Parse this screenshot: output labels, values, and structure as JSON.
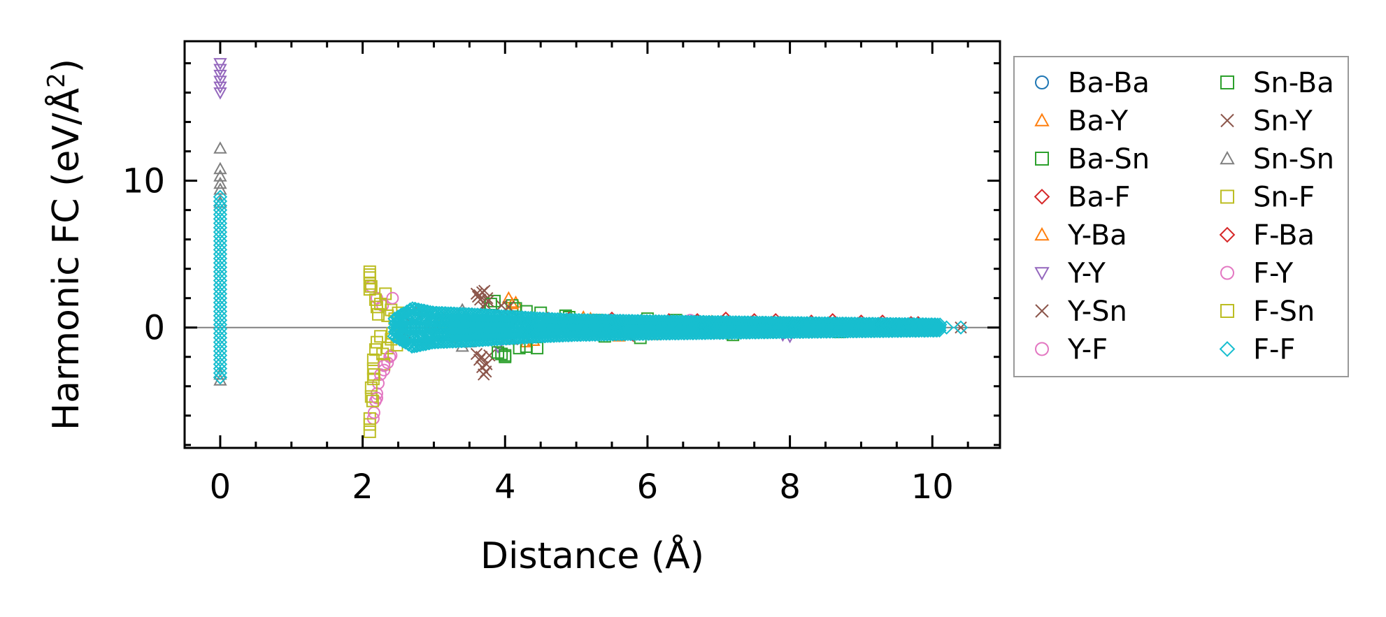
{
  "chart_data": {
    "type": "scatter",
    "title": "",
    "xlabel": "Distance (Å)",
    "ylabel_main": "Harmonic FC (eV/Å",
    "ylabel_sup": "2",
    "ylabel_tail": ")",
    "xlim": [
      -0.5,
      10.95
    ],
    "ylim": [
      -8.2,
      19.5
    ],
    "xticks": [
      0,
      2,
      4,
      6,
      8,
      10
    ],
    "yticks": [
      0,
      10
    ],
    "minor_xtick_step": 0.5,
    "minor_ytick_step": 2,
    "zero_line": true,
    "grid": false,
    "legend_position": "outside-right",
    "legend_columns": 2,
    "series": [
      {
        "name": "Ba-Ba",
        "marker": "circle",
        "color": "#1f77b4",
        "points": [
          [
            4.1,
            0.6
          ],
          [
            4.4,
            0.3
          ],
          [
            4.7,
            -0.3
          ],
          [
            5.3,
            0.4
          ],
          [
            5.9,
            -0.2
          ],
          [
            6.6,
            0.3
          ],
          [
            7.2,
            0.2
          ],
          [
            8.2,
            0.1
          ],
          [
            9.0,
            0.1
          ]
        ]
      },
      {
        "name": "Ba-Y",
        "marker": "triangle-up",
        "color": "#ff7f0e",
        "points": [
          [
            4.05,
            2.0
          ],
          [
            4.15,
            1.7
          ],
          [
            4.3,
            -1.0
          ],
          [
            4.6,
            0.5
          ],
          [
            5.1,
            0.7
          ],
          [
            5.6,
            -0.6
          ],
          [
            6.3,
            0.5
          ],
          [
            7.0,
            -0.4
          ],
          [
            7.6,
            0.3
          ],
          [
            8.3,
            -0.3
          ],
          [
            9.1,
            0.2
          ]
        ]
      },
      {
        "name": "Ba-Sn",
        "marker": "square",
        "color": "#2ca02c",
        "points": [
          [
            3.85,
            1.8
          ],
          [
            3.95,
            -1.8
          ],
          [
            4.0,
            -2.0
          ],
          [
            4.1,
            1.5
          ],
          [
            4.3,
            -1.3
          ],
          [
            4.5,
            1.0
          ],
          [
            4.85,
            0.8
          ],
          [
            5.3,
            0.5
          ],
          [
            5.9,
            -0.7
          ],
          [
            6.4,
            0.5
          ],
          [
            7.2,
            -0.5
          ],
          [
            7.9,
            0.3
          ],
          [
            8.7,
            -0.3
          ]
        ]
      },
      {
        "name": "Ba-F",
        "marker": "diamond",
        "color": "#d62728",
        "points": [
          [
            2.65,
            0.9
          ],
          [
            2.9,
            -0.9
          ],
          [
            3.2,
            0.8
          ],
          [
            3.9,
            0.7
          ],
          [
            4.6,
            0.6
          ],
          [
            5.5,
            0.6
          ],
          [
            6.3,
            0.5
          ],
          [
            7.1,
            0.6
          ],
          [
            7.8,
            0.5
          ],
          [
            8.6,
            0.5
          ],
          [
            9.3,
            0.4
          ],
          [
            9.8,
            0.3
          ]
        ]
      },
      {
        "name": "Y-Ba",
        "marker": "triangle-up",
        "color": "#ff7f0e",
        "points": [
          [
            4.1,
            1.6
          ],
          [
            4.4,
            -0.9
          ],
          [
            5.2,
            0.6
          ],
          [
            6.1,
            -0.5
          ],
          [
            6.9,
            0.4
          ],
          [
            7.7,
            -0.3
          ],
          [
            8.5,
            0.2
          ]
        ]
      },
      {
        "name": "Y-Y",
        "marker": "triangle-down",
        "color": "#9467bd",
        "points": [
          [
            0,
            18.0
          ],
          [
            0,
            17.6
          ],
          [
            0,
            17.2
          ],
          [
            0,
            16.8
          ],
          [
            0,
            16.4
          ],
          [
            0,
            16.0
          ],
          [
            3.8,
            0.9
          ],
          [
            3.9,
            -1.3
          ],
          [
            4.3,
            0.7
          ],
          [
            5.1,
            0.3
          ],
          [
            6.4,
            -0.2
          ],
          [
            7.9,
            -0.5
          ],
          [
            8.0,
            -0.6
          ],
          [
            9.2,
            0.1
          ]
        ]
      },
      {
        "name": "Y-Sn",
        "marker": "x",
        "color": "#8c564b",
        "points": [
          [
            3.6,
            2.3
          ],
          [
            3.62,
            2.1
          ],
          [
            3.65,
            1.9
          ],
          [
            3.68,
            2.4
          ],
          [
            3.7,
            1.4
          ],
          [
            3.72,
            1.6
          ],
          [
            3.75,
            2.0
          ],
          [
            3.6,
            -1.8
          ],
          [
            3.64,
            -2.2
          ],
          [
            3.68,
            -2.7
          ],
          [
            3.7,
            -3.2
          ],
          [
            3.74,
            -2.5
          ],
          [
            3.78,
            -1.9
          ],
          [
            3.95,
            1.5
          ],
          [
            4.0,
            -0.8
          ],
          [
            7.1,
            -0.4
          ],
          [
            10.4,
            0.0
          ]
        ]
      },
      {
        "name": "Y-F",
        "marker": "circle",
        "color": "#e377c2",
        "points": [
          [
            2.15,
            -6.2
          ],
          [
            2.18,
            -5.0
          ],
          [
            2.2,
            -4.5
          ],
          [
            2.22,
            -3.8
          ],
          [
            2.3,
            -2.9
          ],
          [
            2.35,
            -2.4
          ],
          [
            2.4,
            -1.9
          ],
          [
            2.12,
            2.8
          ],
          [
            2.2,
            2.0
          ],
          [
            2.28,
            1.5
          ],
          [
            3.1,
            0.4
          ],
          [
            6.6,
            0.5
          ]
        ]
      },
      {
        "name": "Sn-Ba",
        "marker": "square",
        "color": "#2ca02c",
        "points": [
          [
            3.8,
            1.6
          ],
          [
            3.9,
            -1.7
          ],
          [
            4.0,
            -1.9
          ],
          [
            4.15,
            1.3
          ],
          [
            4.2,
            -1.4
          ],
          [
            4.3,
            1.1
          ],
          [
            4.45,
            -1.4
          ],
          [
            4.9,
            0.7
          ],
          [
            5.4,
            -0.6
          ],
          [
            6.0,
            0.6
          ]
        ]
      },
      {
        "name": "Sn-Y",
        "marker": "x",
        "color": "#8c564b",
        "points": [
          [
            3.64,
            2.2
          ],
          [
            3.67,
            -2.0
          ],
          [
            3.71,
            2.5
          ],
          [
            3.73,
            -3.0
          ],
          [
            3.76,
            1.8
          ],
          [
            4.05,
            1.4
          ],
          [
            4.1,
            -0.8
          ]
        ]
      },
      {
        "name": "Sn-Sn",
        "marker": "triangle-up",
        "color": "#7f7f7f",
        "points": [
          [
            0,
            12.2
          ],
          [
            0,
            10.8
          ],
          [
            0,
            10.3
          ],
          [
            0,
            9.8
          ],
          [
            0,
            9.4
          ],
          [
            0,
            8.5
          ],
          [
            0,
            -3.2
          ],
          [
            0,
            -3.6
          ],
          [
            3.4,
            1.2
          ],
          [
            3.4,
            -1.3
          ],
          [
            3.5,
            -1.0
          ]
        ]
      },
      {
        "name": "Sn-F",
        "marker": "square",
        "color": "#bcbd22",
        "points": [
          [
            2.1,
            3.8
          ],
          [
            2.1,
            3.4
          ],
          [
            2.1,
            3.0
          ],
          [
            2.1,
            2.6
          ],
          [
            2.1,
            -7.1
          ],
          [
            2.1,
            -6.6
          ],
          [
            2.1,
            -6.2
          ],
          [
            2.12,
            -4.7
          ],
          [
            2.12,
            -4.1
          ],
          [
            2.15,
            -3.5
          ],
          [
            2.15,
            -2.8
          ],
          [
            2.15,
            -2.2
          ],
          [
            2.18,
            -1.5
          ],
          [
            2.18,
            1.9
          ],
          [
            2.2,
            1.4
          ],
          [
            2.22,
            0.9
          ],
          [
            2.25,
            -0.6
          ],
          [
            2.3,
            -2.5
          ],
          [
            2.32,
            2.3
          ],
          [
            2.35,
            -1.4
          ],
          [
            2.4,
            1.2
          ],
          [
            2.4,
            -0.8
          ],
          [
            2.45,
            0.6
          ],
          [
            2.48,
            -1.2
          ],
          [
            2.5,
            1.0
          ],
          [
            2.55,
            -0.5
          ],
          [
            3.0,
            0.5
          ],
          [
            3.3,
            -0.6
          ],
          [
            9.5,
            0.0
          ]
        ]
      },
      {
        "name": "F-Ba",
        "marker": "diamond",
        "color": "#d62728",
        "points": [
          [
            2.6,
            -0.8
          ],
          [
            2.75,
            0.9
          ],
          [
            3.3,
            -0.7
          ],
          [
            4.0,
            0.6
          ],
          [
            4.9,
            0.6
          ],
          [
            5.8,
            -0.5
          ],
          [
            6.7,
            0.5
          ],
          [
            7.5,
            0.5
          ],
          [
            8.3,
            0.4
          ],
          [
            9.0,
            0.4
          ],
          [
            9.7,
            0.3
          ]
        ]
      },
      {
        "name": "F-Y",
        "marker": "circle",
        "color": "#e377c2",
        "points": [
          [
            2.16,
            -5.8
          ],
          [
            2.2,
            -4.8
          ],
          [
            2.25,
            -3.2
          ],
          [
            2.3,
            -2.6
          ],
          [
            2.38,
            -2.0
          ],
          [
            2.42,
            2.0
          ]
        ]
      },
      {
        "name": "F-Sn",
        "marker": "square",
        "color": "#bcbd22",
        "points": [
          [
            2.1,
            3.6
          ],
          [
            2.12,
            2.8
          ],
          [
            2.14,
            -5.0
          ],
          [
            2.16,
            -3.2
          ],
          [
            2.2,
            -1.0
          ],
          [
            2.25,
            1.6
          ],
          [
            2.28,
            -1.8
          ],
          [
            2.35,
            0.8
          ],
          [
            2.42,
            -0.4
          ],
          [
            2.5,
            0.5
          ],
          [
            3.2,
            -0.4
          ],
          [
            3.6,
            0.3
          ]
        ]
      }
    ],
    "ff_band": {
      "name": "F-F",
      "marker": "diamond",
      "color": "#17becf",
      "x_step": 0.025,
      "x_start": 2.45,
      "x_end": 10.1,
      "envelope": [
        [
          2.45,
          0.6
        ],
        [
          2.7,
          1.3
        ],
        [
          3.0,
          1.0
        ],
        [
          3.5,
          0.9
        ],
        [
          4.0,
          0.75
        ],
        [
          4.5,
          0.6
        ],
        [
          5.0,
          0.5
        ],
        [
          6.0,
          0.42
        ],
        [
          7.0,
          0.36
        ],
        [
          8.0,
          0.3
        ],
        [
          9.0,
          0.25
        ],
        [
          10.1,
          0.2
        ]
      ],
      "column_x0": 0,
      "column_top": 9.0,
      "column_bottom": -3.4,
      "column_step": 0.3,
      "tail_points": [
        [
          10.4,
          0.0
        ],
        [
          10.2,
          0.0
        ]
      ]
    },
    "legend": {
      "col1": [
        "Ba-Ba",
        "Ba-Y",
        "Ba-Sn",
        "Ba-F",
        "Y-Ba",
        "Y-Y",
        "Y-Sn",
        "Y-F"
      ],
      "col2": [
        "Sn-Ba",
        "Sn-Y",
        "Sn-Sn",
        "Sn-F",
        "F-Ba",
        "F-Y",
        "F-Sn",
        "F-F"
      ]
    }
  }
}
